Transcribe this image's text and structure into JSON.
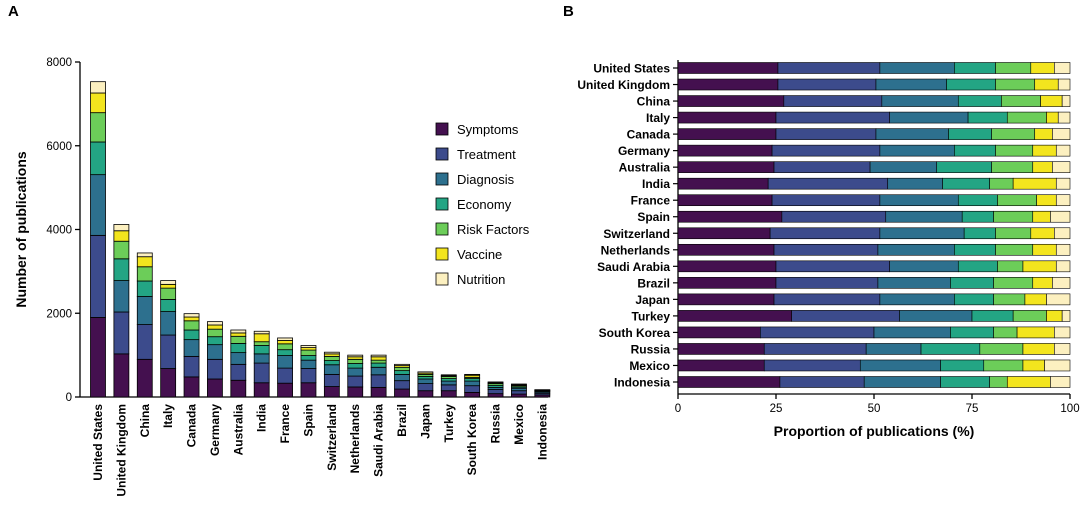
{
  "colors": {
    "Symptoms": "#44104f",
    "Treatment": "#3c4b8c",
    "Diagnosis": "#2d708e",
    "Economy": "#23a584",
    "Risk Factors": "#6ccd59",
    "Vaccine": "#f3e51e",
    "Nutrition": "#fcf0c0"
  },
  "chart_data": [
    {
      "panel_label": "A",
      "type": "bar",
      "stacked": true,
      "title": "",
      "xlabel": "",
      "ylabel": "Number of publications",
      "ylim": [
        0,
        8000
      ],
      "yticks": [
        0,
        2000,
        4000,
        6000,
        8000
      ],
      "legend_position": "right",
      "categories": [
        "United States",
        "United Kingdom",
        "China",
        "Italy",
        "Canada",
        "Germany",
        "Australia",
        "India",
        "France",
        "Spain",
        "Switzerland",
        "Netherlands",
        "Saudi Arabia",
        "Brazil",
        "Japan",
        "Turkey",
        "South Korea",
        "Russia",
        "Mexico",
        "Indonesia"
      ],
      "series": [
        {
          "name": "Symptoms",
          "values": [
            1900,
            1030,
            900,
            680,
            480,
            430,
            400,
            340,
            330,
            340,
            250,
            240,
            230,
            190,
            150,
            150,
            110,
            80,
            70,
            50
          ]
        },
        {
          "name": "Treatment",
          "values": [
            1960,
            1000,
            830,
            800,
            490,
            470,
            380,
            470,
            360,
            340,
            290,
            260,
            300,
            200,
            170,
            140,
            160,
            100,
            80,
            40
          ]
        },
        {
          "name": "Diagnosis",
          "values": [
            1450,
            750,
            670,
            560,
            400,
            350,
            280,
            220,
            300,
            200,
            230,
            190,
            180,
            150,
            110,
            90,
            110,
            50,
            60,
            30
          ]
        },
        {
          "name": "Economy",
          "values": [
            780,
            520,
            370,
            290,
            230,
            190,
            220,
            200,
            140,
            110,
            100,
            110,
            100,
            90,
            60,
            60,
            60,
            50,
            30,
            20
          ]
        },
        {
          "name": "Risk Factors",
          "values": [
            700,
            420,
            340,
            270,
            220,
            180,
            170,
            90,
            140,
            130,
            100,
            100,
            70,
            80,
            50,
            50,
            30,
            40,
            30,
            10
          ]
        },
        {
          "name": "Vaccine",
          "values": [
            470,
            250,
            240,
            90,
            90,
            100,
            80,
            190,
            80,
            60,
            60,
            60,
            80,
            40,
            30,
            20,
            50,
            20,
            20,
            15
          ]
        },
        {
          "name": "Nutrition",
          "values": [
            270,
            150,
            90,
            90,
            80,
            80,
            70,
            60,
            60,
            50,
            40,
            40,
            40,
            30,
            30,
            20,
            20,
            20,
            20,
            10
          ]
        }
      ]
    },
    {
      "panel_label": "B",
      "type": "bar",
      "orientation": "horizontal",
      "stacked": true,
      "title": "",
      "xlabel": "Proportion of publications (%)",
      "ylabel": "",
      "xlim": [
        0,
        100
      ],
      "xticks": [
        0,
        25,
        50,
        75,
        100
      ],
      "categories": [
        "United States",
        "United Kingdom",
        "China",
        "Italy",
        "Canada",
        "Germany",
        "Australia",
        "India",
        "France",
        "Spain",
        "Switzerland",
        "Netherlands",
        "Saudi Arabia",
        "Brazil",
        "Japan",
        "Turkey",
        "South Korea",
        "Russia",
        "Mexico",
        "Indonesia"
      ],
      "series": [
        {
          "name": "Symptoms",
          "values": [
            25.5,
            25.5,
            27,
            25,
            25,
            24,
            24.5,
            23,
            24,
            26.5,
            23.5,
            24.5,
            25,
            25,
            24.5,
            29,
            21,
            22,
            22,
            26
          ]
        },
        {
          "name": "Treatment",
          "values": [
            26,
            25,
            25,
            29,
            25.5,
            27.5,
            24.5,
            30.5,
            27.5,
            26.5,
            28,
            26.5,
            29,
            26,
            27,
            27.5,
            29,
            26,
            24.5,
            21.5
          ]
        },
        {
          "name": "Diagnosis",
          "values": [
            19,
            18,
            19.5,
            20,
            18.5,
            19,
            17,
            14,
            20,
            19.5,
            21.5,
            19.5,
            17.5,
            18.5,
            19,
            18.5,
            19.5,
            14,
            20.5,
            19.5
          ]
        },
        {
          "name": "Economy",
          "values": [
            10.5,
            12.5,
            11,
            10,
            11,
            10.5,
            14,
            12,
            10,
            8,
            8,
            10.5,
            10,
            11,
            10,
            10.5,
            11,
            15,
            11,
            12.5
          ]
        },
        {
          "name": "Risk Factors",
          "values": [
            9,
            10,
            10,
            10,
            11,
            9.5,
            10.5,
            6,
            10,
            10,
            9,
            9.5,
            6.5,
            10,
            8,
            8.5,
            6,
            11,
            10,
            4.5
          ]
        },
        {
          "name": "Vaccine",
          "values": [
            6,
            6,
            5.5,
            3,
            4.5,
            6,
            5,
            11,
            5,
            4.5,
            6,
            6,
            8.5,
            5,
            5.5,
            4,
            9.5,
            8,
            5.5,
            11
          ]
        },
        {
          "name": "Nutrition",
          "values": [
            4,
            3,
            2,
            3,
            4.5,
            3.5,
            4.5,
            3.5,
            3.5,
            5,
            4,
            3.5,
            3.5,
            4.5,
            6,
            2,
            4,
            4,
            6.5,
            5
          ]
        }
      ]
    }
  ]
}
